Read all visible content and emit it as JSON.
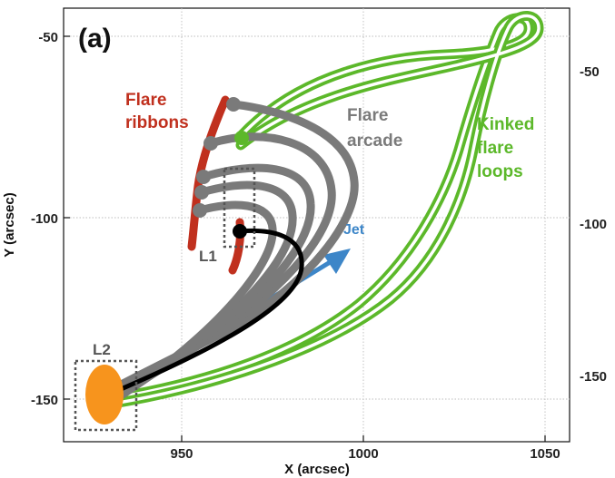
{
  "panel_label": "(a)",
  "axes": {
    "x_title": "X (arcsec)",
    "y_title": "Y (arcsec)",
    "x_ticks": [
      "950",
      "1000",
      "1050"
    ],
    "y_ticks_left": [
      "-50",
      "-100",
      "-150"
    ],
    "y_ticks_right": [
      "-50",
      "-100",
      "-150"
    ],
    "x_range": [
      922,
      1058
    ],
    "y_range": [
      -164,
      -33
    ],
    "grid": true
  },
  "labels": {
    "ribbons_line1": "Flare",
    "ribbons_line2": "ribbons",
    "arcade_line1": "Flare",
    "arcade_line2": "arcade",
    "kinked_line1": "Kinked",
    "kinked_line2": "flare",
    "kinked_line3": "loops",
    "jet": "Jet",
    "box_l1": "L1",
    "box_l2": "L2"
  },
  "colors": {
    "ribbon": "#c0301e",
    "arcade": "#7a7a7a",
    "kinked": "#5cb82a",
    "jet": "#3d86c8",
    "footpoint": "#f7941d",
    "black_loop": "#000000",
    "box": "#555555",
    "grid": "#bdbdbd"
  }
}
